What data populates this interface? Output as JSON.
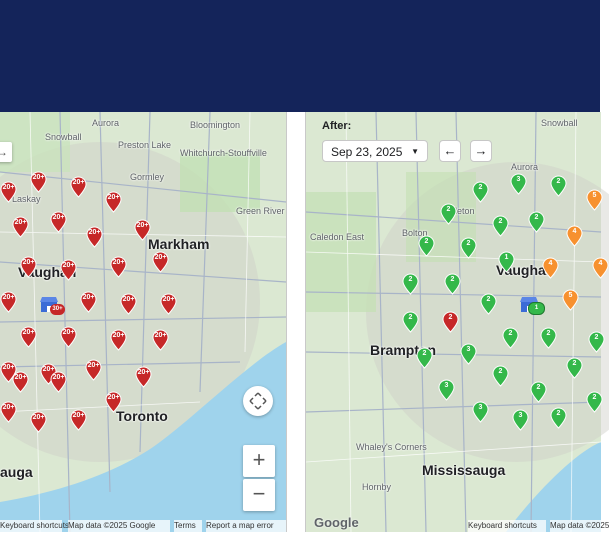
{
  "colors": {
    "header": "#14245a",
    "red_pin": "#c62828",
    "green_pin": "#34b84a",
    "orange_pin": "#f7912f",
    "store": "#3b6bd6"
  },
  "left_map": {
    "labels": [
      {
        "text": "Bloomington",
        "cls": "label"
      },
      {
        "text": "Aurora",
        "cls": "label"
      },
      {
        "text": "Snowball",
        "cls": "label"
      },
      {
        "text": "Preston Lake",
        "cls": "label"
      },
      {
        "text": "Whitchurch-Stouffville",
        "cls": "label"
      },
      {
        "text": "Gormley",
        "cls": "label"
      },
      {
        "text": "Laskay",
        "cls": "label"
      },
      {
        "text": "Green River",
        "cls": "label"
      },
      {
        "text": "Markham",
        "cls": "label city"
      },
      {
        "text": "Vaughan",
        "cls": "label city"
      },
      {
        "text": "Toronto",
        "cls": "label city"
      },
      {
        "text": "auga",
        "cls": "label city"
      }
    ],
    "pin_label": "20+",
    "store_badge": "30+",
    "attribution": {
      "shortcuts": "Keyboard shortcuts",
      "map_data": "Map data ©2025 Google",
      "terms": "Terms",
      "report": "Report a map error"
    },
    "zoom_in": "+",
    "zoom_out": "−",
    "compass_icon": "move-icon"
  },
  "right_map": {
    "after_label": "After:",
    "date_value": "Sep 23, 2025",
    "prev_label": "←",
    "next_label": "→",
    "labels": [
      {
        "text": "Snowball",
        "cls": "label"
      },
      {
        "text": "Aurora",
        "cls": "label"
      },
      {
        "text": "Caledon East",
        "cls": "label"
      },
      {
        "text": "Bolton",
        "cls": "label"
      },
      {
        "text": "bleton",
        "cls": "label"
      },
      {
        "text": "Vaughan",
        "cls": "label city"
      },
      {
        "text": "Brampton",
        "cls": "label city"
      },
      {
        "text": "Mississauga",
        "cls": "label city"
      },
      {
        "text": "Whaley's Corners",
        "cls": "label"
      },
      {
        "text": "Hornby",
        "cls": "label"
      }
    ],
    "store_badge": "1",
    "attribution": {
      "shortcuts": "Keyboard shortcuts",
      "map_data": "Map data ©2025"
    },
    "google": "Google"
  }
}
